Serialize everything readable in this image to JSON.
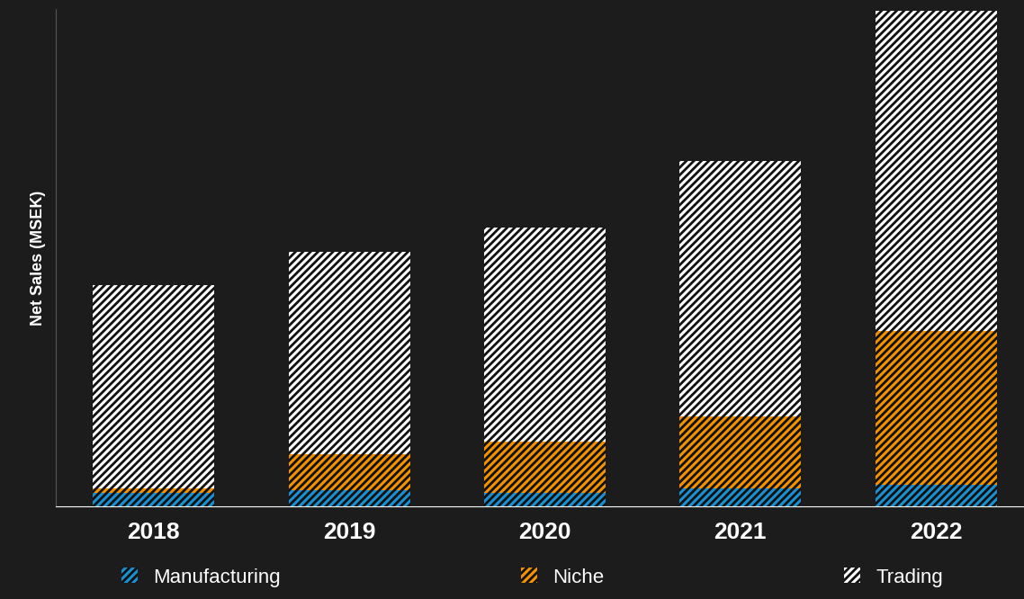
{
  "chart_data": {
    "type": "bar",
    "stacked": true,
    "y_label": "Net Sales (MSEK)",
    "categories": [
      "2018",
      "2019",
      "2020",
      "2021",
      "2022"
    ],
    "series": [
      {
        "name": "Manufacturing",
        "color": "#1b8fd0",
        "values": [
          15,
          18,
          15,
          20,
          24
        ]
      },
      {
        "name": "Niche",
        "color": "#f39200",
        "values": [
          5,
          40,
          57,
          80,
          171
        ]
      },
      {
        "name": "Trading",
        "color": "#ffffff",
        "values": [
          226,
          225,
          238,
          284,
          356
        ]
      }
    ],
    "ylim": [
      0,
      553
    ],
    "yticks": [],
    "tick_labels": "x",
    "grid": false,
    "legend": "lower center"
  }
}
